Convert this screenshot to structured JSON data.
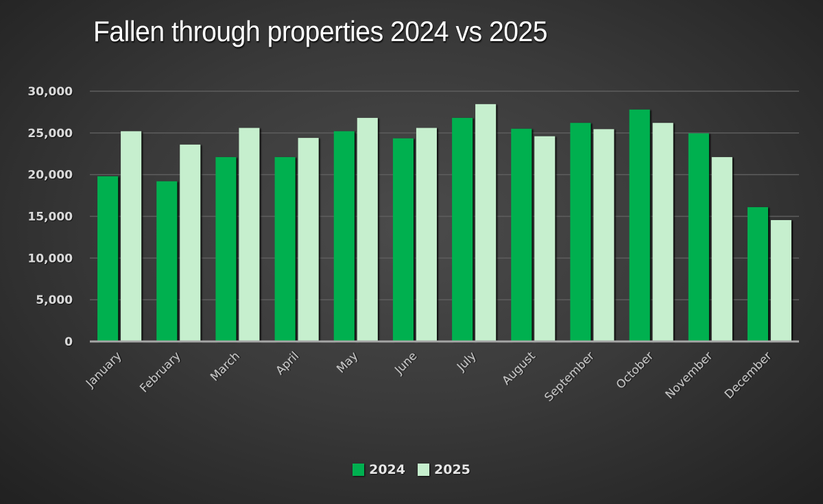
{
  "colors": {
    "series_2024": "#00b050",
    "series_2025": "#c6efce"
  },
  "chart_data": {
    "type": "bar",
    "title": "Fallen through properties 2024 vs 2025",
    "xlabel": "",
    "ylabel": "",
    "categories": [
      "January",
      "February",
      "March",
      "April",
      "May",
      "June",
      "July",
      "August",
      "September",
      "October",
      "November",
      "December"
    ],
    "series": [
      {
        "name": "2024",
        "values": [
          19800,
          19200,
          22100,
          22100,
          25200,
          24350,
          26800,
          25500,
          26200,
          27800,
          24950,
          16100
        ]
      },
      {
        "name": "2025",
        "values": [
          25200,
          23600,
          25600,
          24400,
          26800,
          25600,
          28450,
          24600,
          25450,
          26200,
          22100,
          14550
        ]
      }
    ],
    "ylim": [
      0,
      30000
    ],
    "yticks": [
      0,
      5000,
      10000,
      15000,
      20000,
      25000,
      30000
    ],
    "ytick_labels": [
      "0",
      "5,000",
      "10,000",
      "15,000",
      "20,000",
      "25,000",
      "30,000"
    ],
    "grid": true,
    "legend_position": "bottom",
    "xtick_rotation": "diagonal"
  }
}
